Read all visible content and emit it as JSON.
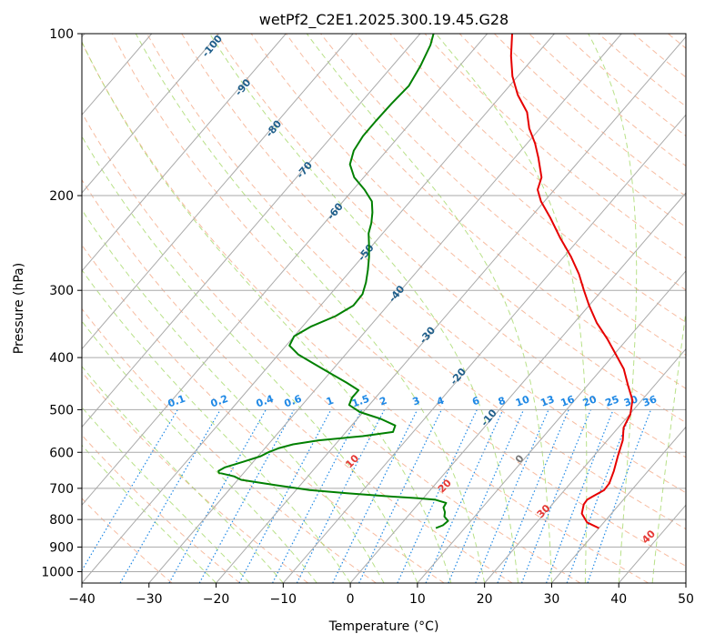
{
  "chart_data": {
    "type": "skewt",
    "title": "wetPf2_C2E1.2025.300.19.45.G28",
    "xlabel": "Temperature (°C)",
    "ylabel": "Pressure (hPa)",
    "xlim": [
      -40,
      50
    ],
    "ylim": [
      1050,
      100
    ],
    "x_ticks": [
      "−40",
      "−30",
      "−20",
      "−10",
      "0",
      "10",
      "20",
      "30",
      "40",
      "50"
    ],
    "x_tick_values": [
      -40,
      -30,
      -20,
      -10,
      0,
      10,
      20,
      30,
      40,
      50
    ],
    "y_ticks": [
      "100",
      "200",
      "300",
      "400",
      "500",
      "600",
      "700",
      "800",
      "900",
      "1000"
    ],
    "y_tick_values": [
      100,
      200,
      300,
      400,
      500,
      600,
      700,
      800,
      900,
      1000
    ],
    "grid": true,
    "series": [
      {
        "name": "temperature",
        "color": "#e60000",
        "points": [
          [
            830,
            30.0
          ],
          [
            810,
            27.5
          ],
          [
            780,
            25.6
          ],
          [
            750,
            24.7
          ],
          [
            735,
            24.6
          ],
          [
            725,
            25.0
          ],
          [
            705,
            25.9
          ],
          [
            685,
            25.8
          ],
          [
            650,
            24.9
          ],
          [
            610,
            23.6
          ],
          [
            570,
            22.3
          ],
          [
            540,
            20.8
          ],
          [
            510,
            20.1
          ],
          [
            480,
            18.6
          ],
          [
            450,
            16.0
          ],
          [
            420,
            13.3
          ],
          [
            395,
            10.3
          ],
          [
            370,
            7.1
          ],
          [
            345,
            3.4
          ],
          [
            320,
            0.0
          ],
          [
            300,
            -2.7
          ],
          [
            280,
            -5.5
          ],
          [
            260,
            -8.9
          ],
          [
            240,
            -12.9
          ],
          [
            220,
            -17.0
          ],
          [
            205,
            -20.5
          ],
          [
            195,
            -22.5
          ],
          [
            185,
            -23.5
          ],
          [
            170,
            -26.5
          ],
          [
            160,
            -28.8
          ],
          [
            150,
            -31.6
          ],
          [
            140,
            -34.0
          ],
          [
            130,
            -37.6
          ],
          [
            120,
            -40.8
          ],
          [
            110,
            -43.6
          ],
          [
            100,
            -46.3
          ]
        ]
      },
      {
        "name": "dewpoint",
        "color": "#008000",
        "points": [
          [
            830,
            5.7
          ],
          [
            820,
            6.4
          ],
          [
            805,
            6.6
          ],
          [
            790,
            5.5
          ],
          [
            775,
            5.0
          ],
          [
            760,
            4.2
          ],
          [
            745,
            4.0
          ],
          [
            735,
            2.0
          ],
          [
            730,
            -1.0
          ],
          [
            725,
            -5.0
          ],
          [
            715,
            -12.0
          ],
          [
            705,
            -18.0
          ],
          [
            690,
            -23.8
          ],
          [
            675,
            -29.5
          ],
          [
            665,
            -31.0
          ],
          [
            655,
            -33.7
          ],
          [
            650,
            -34.0
          ],
          [
            640,
            -33.5
          ],
          [
            625,
            -31.5
          ],
          [
            610,
            -29.6
          ],
          [
            600,
            -29.0
          ],
          [
            590,
            -28.0
          ],
          [
            580,
            -26.3
          ],
          [
            570,
            -23.0
          ],
          [
            560,
            -17.0
          ],
          [
            550,
            -13.0
          ],
          [
            535,
            -13.5
          ],
          [
            520,
            -16.5
          ],
          [
            505,
            -20.5
          ],
          [
            490,
            -23.0
          ],
          [
            475,
            -23.5
          ],
          [
            460,
            -23.5
          ],
          [
            445,
            -26.3
          ],
          [
            430,
            -29.4
          ],
          [
            410,
            -33.7
          ],
          [
            395,
            -37.0
          ],
          [
            380,
            -39.5
          ],
          [
            365,
            -40.0
          ],
          [
            350,
            -38.7
          ],
          [
            335,
            -36.4
          ],
          [
            320,
            -35.1
          ],
          [
            305,
            -35.2
          ],
          [
            290,
            -36.2
          ],
          [
            275,
            -37.5
          ],
          [
            260,
            -39.0
          ],
          [
            245,
            -40.8
          ],
          [
            235,
            -42.1
          ],
          [
            225,
            -43.0
          ],
          [
            215,
            -44.2
          ],
          [
            205,
            -45.7
          ],
          [
            195,
            -48.3
          ],
          [
            185,
            -51.4
          ],
          [
            175,
            -53.7
          ],
          [
            165,
            -54.9
          ],
          [
            155,
            -55.4
          ],
          [
            145,
            -55.4
          ],
          [
            135,
            -55.3
          ],
          [
            125,
            -55.0
          ],
          [
            115,
            -55.8
          ],
          [
            105,
            -57.0
          ],
          [
            100,
            -58.0
          ]
        ]
      }
    ],
    "mixing_ratio_lines": [
      "0.1",
      "0.2",
      "0.4",
      "0.6",
      "1",
      "1.5",
      "2",
      "3",
      "4",
      "6",
      "8",
      "10",
      "13",
      "16",
      "20",
      "25",
      "30",
      "36"
    ],
    "dry_adiabat_labels": [
      "10",
      "20",
      "30",
      "40"
    ],
    "moist_adiabat_labels": [
      "-100",
      "-90",
      "-80",
      "-70",
      "-60",
      "-50",
      "-40",
      "-30",
      "-20",
      "-10",
      "0"
    ]
  }
}
